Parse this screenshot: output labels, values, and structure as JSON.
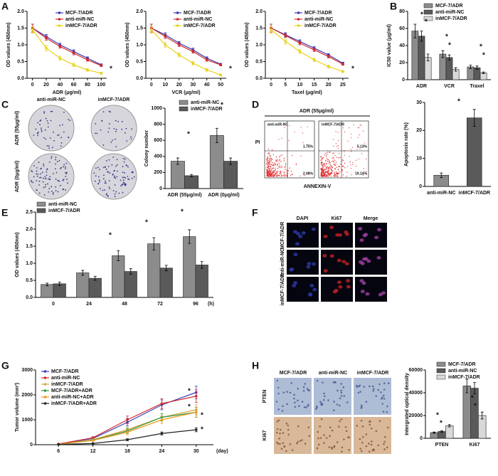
{
  "panel_letters": [
    "A",
    "B",
    "C",
    "D",
    "E",
    "F",
    "G",
    "H"
  ],
  "chart_data": [
    {
      "type": "line",
      "x_label": "ADR (μg/ml)",
      "y_label": "OD values (450nm)",
      "x": [
        0,
        20,
        40,
        60,
        80,
        100
      ],
      "xlim": [
        -8,
        108
      ],
      "xticks": [
        0,
        20,
        40,
        60,
        80,
        100
      ],
      "ylim": [
        0,
        2
      ],
      "yticks": [
        {
          "value": 0,
          "label": "0.0"
        },
        0.5,
        {
          "value": 1,
          "label": "1.0"
        },
        1.5,
        {
          "value": 2,
          "label": "2.0"
        }
      ],
      "series": [
        {
          "name": "MCF-7/ADR",
          "color": "#3b3bb5",
          "values": [
            1.5,
            1.25,
            1.0,
            0.8,
            0.6,
            0.4
          ],
          "errors": [
            0.12,
            0.06,
            0.05,
            0.05,
            0.04,
            0.03
          ]
        },
        {
          "name": "anti-miR-NC",
          "color": "#d42a2a",
          "values": [
            1.5,
            1.2,
            0.95,
            0.75,
            0.55,
            0.38
          ],
          "errors": [
            0.12,
            0.06,
            0.05,
            0.05,
            0.04,
            0.03
          ]
        },
        {
          "name": "inMCF-7/ADR",
          "color": "#e8d21a",
          "values": [
            1.45,
            0.9,
            0.6,
            0.4,
            0.25,
            0.15
          ],
          "errors": [
            0.1,
            0.08,
            0.06,
            0.05,
            0.04,
            0.03
          ]
        }
      ],
      "annotations": [
        "*"
      ]
    },
    {
      "type": "line",
      "x_label": "VCR (μg/ml)",
      "y_label": "OD values (450nm)",
      "x": [
        0,
        10,
        20,
        30,
        40,
        50
      ],
      "xlim": [
        -4,
        54
      ],
      "xticks": [
        0,
        10,
        20,
        30,
        40,
        50
      ],
      "ylim": [
        0,
        2
      ],
      "yticks": [
        {
          "value": 0,
          "label": "0.0"
        },
        0.5,
        {
          "value": 1,
          "label": "1.0"
        },
        1.5,
        {
          "value": 2,
          "label": "2.0"
        }
      ],
      "series": [
        {
          "name": "MCF-7/ADR",
          "color": "#3b3bb5",
          "values": [
            1.5,
            1.3,
            1.05,
            0.85,
            0.6,
            0.42
          ],
          "errors": [
            0.12,
            0.06,
            0.05,
            0.05,
            0.04,
            0.03
          ]
        },
        {
          "name": "anti-miR-NC",
          "color": "#d42a2a",
          "values": [
            1.5,
            1.25,
            1.0,
            0.8,
            0.55,
            0.4
          ],
          "errors": [
            0.12,
            0.06,
            0.05,
            0.05,
            0.04,
            0.03
          ]
        },
        {
          "name": "inMCF-7/ADR",
          "color": "#e8d21a",
          "values": [
            1.45,
            1.0,
            0.7,
            0.45,
            0.25,
            0.1
          ],
          "errors": [
            0.1,
            0.08,
            0.06,
            0.05,
            0.04,
            0.03
          ]
        }
      ],
      "annotations": [
        "*"
      ]
    },
    {
      "type": "line",
      "x_label": "Taxel (μg/ml)",
      "y_label": "OD values (450nm)",
      "x": [
        0,
        5,
        10,
        15,
        20,
        25
      ],
      "xlim": [
        -2,
        27
      ],
      "xticks": [
        0,
        5,
        10,
        15,
        20,
        25
      ],
      "ylim": [
        0,
        2
      ],
      "yticks": [
        {
          "value": 0,
          "label": "0.0"
        },
        0.5,
        {
          "value": 1,
          "label": "1.0"
        },
        1.5,
        {
          "value": 2,
          "label": "2.0"
        }
      ],
      "series": [
        {
          "name": "MCF-7/ADR",
          "color": "#3b3bb5",
          "values": [
            1.5,
            1.3,
            1.1,
            0.9,
            0.7,
            0.45
          ],
          "errors": [
            0.12,
            0.06,
            0.05,
            0.05,
            0.04,
            0.03
          ]
        },
        {
          "name": "anti-miR-NC",
          "color": "#d42a2a",
          "values": [
            1.5,
            1.28,
            1.05,
            0.85,
            0.65,
            0.42
          ],
          "errors": [
            0.12,
            0.06,
            0.05,
            0.05,
            0.04,
            0.03
          ]
        },
        {
          "name": "inMCF-7/ADR",
          "color": "#e8d21a",
          "values": [
            1.45,
            1.1,
            0.8,
            0.55,
            0.35,
            0.2
          ],
          "errors": [
            0.1,
            0.08,
            0.06,
            0.05,
            0.04,
            0.03
          ]
        }
      ],
      "annotations": [
        "*"
      ]
    },
    {
      "type": "bar",
      "y_label": "IC50 value (μg/ml)",
      "categories": [
        "ADR",
        "VCR",
        "Traxel"
      ],
      "ylim": [
        0,
        80
      ],
      "yticks": [
        0,
        20,
        40,
        60,
        80
      ],
      "series": [
        {
          "name": "MCF-7/ADR",
          "color": "#8c8c8c",
          "values": [
            57,
            30,
            15
          ],
          "errors": [
            8,
            4,
            2
          ]
        },
        {
          "name": "anti-miR-NC",
          "color": "#5a5a5a",
          "values": [
            51,
            26,
            14
          ],
          "errors": [
            6,
            3,
            2
          ]
        },
        {
          "name": "inMCF-7/ADR",
          "color": "#d9d9d9",
          "values": [
            26,
            12,
            8
          ],
          "errors": [
            4,
            2,
            1
          ]
        }
      ],
      "annotations": [
        "*",
        "*",
        "*",
        "*",
        "*",
        "*"
      ]
    },
    {
      "type": "bar",
      "y_label": "Colony number",
      "categories": [
        "ADR (55μg/ml)",
        "ADR (0μg/ml)"
      ],
      "ylim": [
        0,
        1000
      ],
      "yticks": [
        0,
        200,
        400,
        600,
        800,
        1000
      ],
      "series": [
        {
          "name": "anti-miR-NC",
          "color": "#8c8c8c",
          "values": [
            340,
            660
          ],
          "errors": [
            40,
            90
          ]
        },
        {
          "name": "inMCF-7/ADR",
          "color": "#5a5a5a",
          "values": [
            160,
            340
          ],
          "errors": [
            15,
            40
          ]
        }
      ],
      "annotations": [
        "*",
        "*"
      ]
    },
    {
      "type": "bar",
      "y_label": "Apoptosis rate (%)",
      "categories": [
        "anti-miR-NC",
        "inMCF-7/ADR"
      ],
      "ylim": [
        0,
        30
      ],
      "yticks": [
        0,
        10,
        20,
        30
      ],
      "series": [
        {
          "color": "#8c8c8c",
          "values": [
            4,
            24.5
          ],
          "errors": [
            0.8,
            3
          ]
        }
      ],
      "annotations": [
        "*"
      ]
    },
    {
      "type": "bar",
      "y_label": "OD values (450nm)",
      "x_label": "(h)",
      "categories": [
        "0",
        "24",
        "48",
        "72",
        "96"
      ],
      "ylim": [
        0,
        2.5
      ],
      "yticks": [
        {
          "value": 0,
          "label": "0.0"
        },
        0.5,
        {
          "value": 1,
          "label": "1.0"
        },
        1.5,
        {
          "value": 2,
          "label": "2.0"
        },
        2.5
      ],
      "series": [
        {
          "name": "anti-miR-NC",
          "color": "#8c8c8c",
          "values": [
            0.38,
            0.72,
            1.22,
            1.57,
            1.78
          ],
          "errors": [
            0.04,
            0.07,
            0.15,
            0.18,
            0.2
          ]
        },
        {
          "name": "inMCF-7/ADR",
          "color": "#5a5a5a",
          "values": [
            0.4,
            0.56,
            0.76,
            0.86,
            0.95
          ],
          "errors": [
            0.05,
            0.06,
            0.08,
            0.08,
            0.1
          ]
        }
      ],
      "annotations": [
        "*",
        "*",
        "*"
      ]
    },
    {
      "type": "line",
      "x_label": "(day)",
      "y_label": "Tumor volume (mm³)",
      "x": [
        6,
        12,
        18,
        24,
        30
      ],
      "xlim": [
        2,
        33
      ],
      "xticks": [
        6,
        12,
        18,
        24,
        30
      ],
      "ylim": [
        0,
        3000
      ],
      "yticks": [
        0,
        1000,
        2000,
        3000
      ],
      "series": [
        {
          "name": "MCF-7/ADR",
          "color": "#3b3bb5",
          "values": [
            30,
            250,
            900,
            1600,
            2100
          ],
          "errors": [
            10,
            40,
            150,
            200,
            250
          ]
        },
        {
          "name": "anti-miR-NC",
          "color": "#d42a2a",
          "values": [
            30,
            280,
            1000,
            1650,
            1950
          ],
          "errors": [
            10,
            40,
            150,
            200,
            250
          ]
        },
        {
          "name": "inMCF-7/ADR",
          "color": "#d9a441",
          "values": [
            20,
            200,
            600,
            1100,
            1400
          ],
          "errors": [
            10,
            30,
            100,
            150,
            200
          ]
        },
        {
          "name": "MCF-7/ADR+ADR",
          "color": "#2e9a4a",
          "values": [
            20,
            180,
            550,
            1100,
            1300
          ],
          "errors": [
            10,
            30,
            100,
            150,
            200
          ]
        },
        {
          "name": "anti-miR-NC+ADR",
          "color": "#f09a1a",
          "values": [
            20,
            170,
            500,
            1000,
            1300
          ],
          "errors": [
            10,
            30,
            100,
            150,
            200
          ]
        },
        {
          "name": "inMCF-7/ADR+ADR",
          "color": "#222222",
          "values": [
            10,
            50,
            200,
            450,
            600
          ],
          "errors": [
            5,
            15,
            40,
            60,
            80
          ]
        }
      ],
      "annotations": [
        "*",
        "*",
        "*",
        "*"
      ]
    },
    {
      "type": "bar",
      "y_label": "Intergrated optical density",
      "categories": [
        "PTEN",
        "Ki67"
      ],
      "ylim": [
        0,
        60000
      ],
      "yticks": [
        0,
        20000,
        40000,
        60000
      ],
      "series": [
        {
          "name": "MCF-7/ADR",
          "color": "#8c8c8c",
          "values": [
            5000,
            46000
          ],
          "errors": [
            500,
            6000
          ]
        },
        {
          "name": "anti-miR-NC",
          "color": "#5a5a5a",
          "values": [
            6000,
            44000
          ],
          "errors": [
            700,
            5000
          ]
        },
        {
          "name": "inMCF-7/ADR",
          "color": "#d9d9d9",
          "values": [
            11000,
            20000
          ],
          "errors": [
            1000,
            3000
          ]
        }
      ],
      "annotations": [
        "*",
        "*",
        "*",
        "*"
      ]
    }
  ],
  "panel_c_images": {
    "columns": [
      "anti-miR-NC",
      "inMCF-7/ADR"
    ],
    "rows": [
      "ADR (55μg/ml)",
      "ADR (0μg/ml)"
    ]
  },
  "panel_d_flow": {
    "title": "ADR (55μg/ml)",
    "columns": [
      "anti-miR-NC",
      "inMCF-7/ADR"
    ],
    "y_label": "PI",
    "x_label": "ANNEXIN-V",
    "quadrants": [
      [
        "1.75%",
        "2.08%"
      ],
      [
        "5.13%",
        "19.14%"
      ]
    ]
  },
  "panel_f_images": {
    "columns": [
      "DAPI",
      "Ki67",
      "Merge"
    ],
    "rows": [
      "MCF-7/ADR",
      "anti-miR-NC",
      "inMCF-7/ADR"
    ]
  },
  "panel_h_images": {
    "columns": [
      "MCF-7/ADR",
      "anti-miR-NC",
      "inMCF-7/ADR"
    ],
    "rows": [
      "PTEN",
      "Ki67"
    ]
  }
}
